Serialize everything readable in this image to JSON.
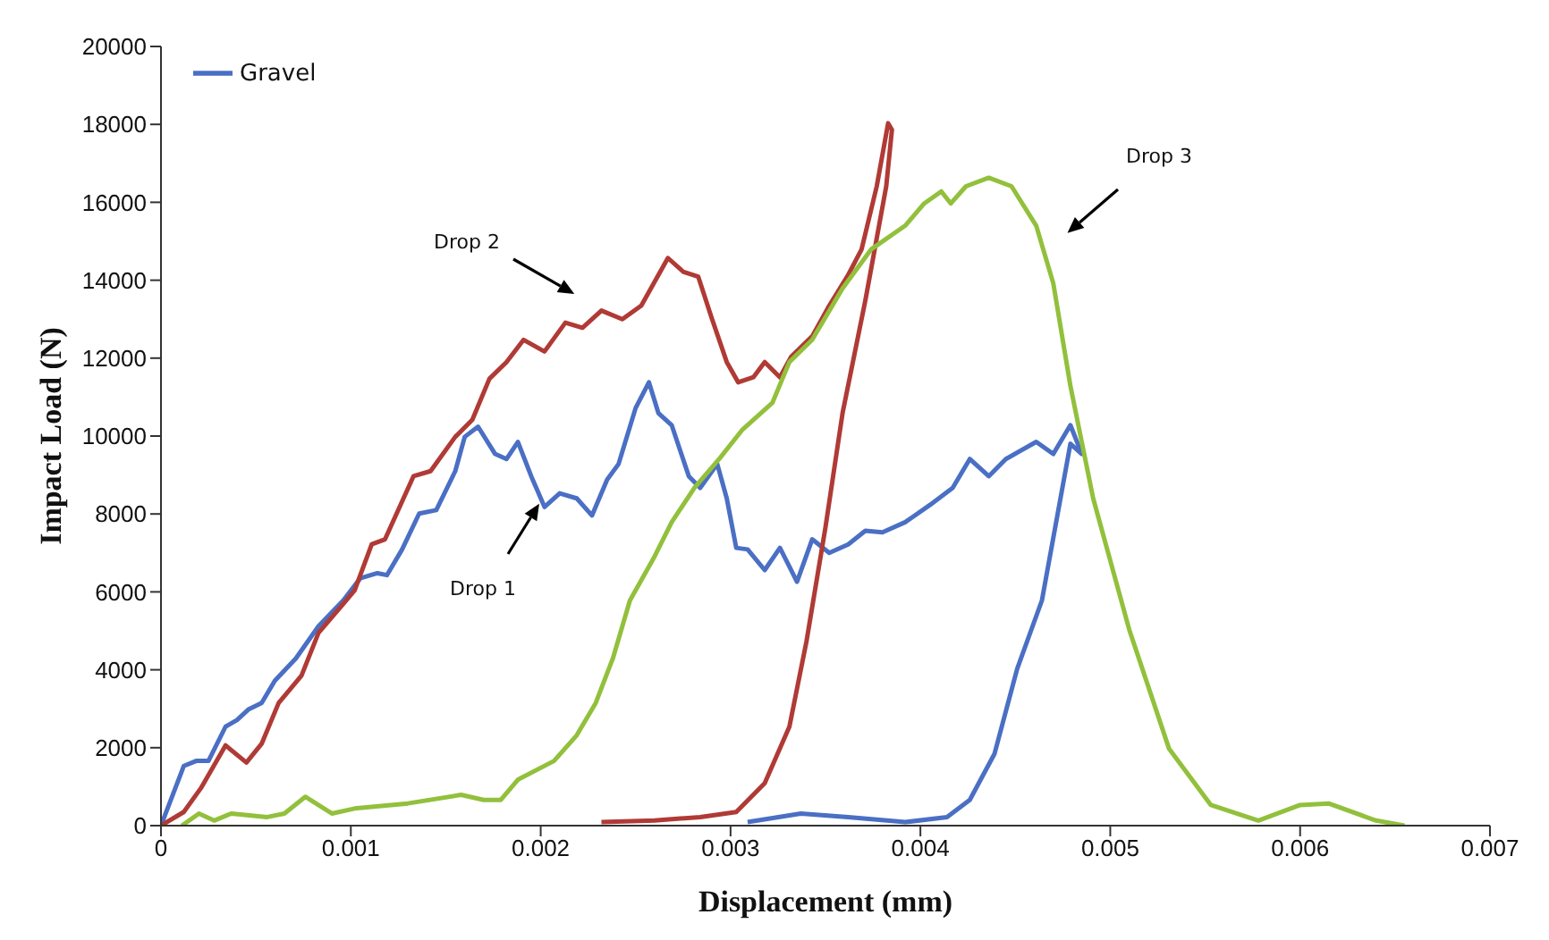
{
  "chart_data": {
    "type": "line",
    "xlabel": "Displacement (mm)",
    "ylabel": "Impact Load (N)",
    "xlim": [
      0,
      0.007
    ],
    "xticks": [
      0,
      0.001,
      0.002,
      0.003,
      0.004,
      0.005,
      0.006,
      0.007
    ],
    "ylim": [
      0,
      20000
    ],
    "yticks": [
      0,
      2000,
      4000,
      6000,
      8000,
      10000,
      12000,
      14000,
      16000,
      18000,
      20000
    ],
    "legend": "top left",
    "grid": false,
    "annotations": [
      "Drop 1",
      "Drop 2",
      "Drop 3"
    ],
    "series": [
      {
        "name": "Gravel",
        "color": "#4a6fc4",
        "x": [
          0,
          0.00012,
          0.000185,
          0.00025,
          0.00034,
          0.0004,
          0.00046,
          0.00053,
          0.0006,
          0.00071,
          0.00083,
          0.00096,
          0.00105,
          0.00114,
          0.00119,
          0.00127,
          0.00136,
          0.00145,
          0.00155,
          0.0016,
          0.00167,
          0.00176,
          0.00182,
          0.00188,
          0.00195,
          0.00202,
          0.0021,
          0.00219,
          0.00227,
          0.00235,
          0.00241,
          0.0025,
          0.00257,
          0.00262,
          0.00269,
          0.00278,
          0.00284,
          0.00293,
          0.00298,
          0.00303,
          0.00309,
          0.00318,
          0.00326,
          0.00331,
          0.00335,
          0.00343,
          0.00352,
          0.00362,
          0.00371,
          0.0038,
          0.00392,
          0.00405,
          0.00417,
          0.00426,
          0.00436,
          0.00445,
          0.00461,
          0.0047,
          0.00479,
          0.00485,
          0.00479,
          0.00464,
          0.00451,
          0.00439,
          0.00426,
          0.00414,
          0.00392,
          0.00362,
          0.00337,
          0.00309
        ],
        "values": [
          0,
          1530,
          1660,
          1660,
          2540,
          2710,
          2980,
          3150,
          3720,
          4290,
          5120,
          5780,
          6350,
          6480,
          6430,
          7090,
          8010,
          8100,
          9100,
          9980,
          10240,
          9540,
          9410,
          9850,
          8970,
          8180,
          8530,
          8400,
          7960,
          8880,
          9280,
          10720,
          11380,
          10590,
          10280,
          8970,
          8670,
          9280,
          8400,
          7130,
          7090,
          6560,
          7130,
          6650,
          6260,
          7350,
          7000,
          7220,
          7570,
          7530,
          7790,
          8230,
          8670,
          9410,
          8970,
          9410,
          9850,
          9540,
          10280,
          9540,
          9800,
          5780,
          4030,
          1840,
          660,
          220,
          90,
          220,
          310,
          90
        ]
      },
      {
        "color": "#b03a35",
        "x": [
          0,
          0.00012,
          0.00021,
          0.00034,
          0.00045,
          0.00053,
          0.00062,
          0.00074,
          0.00083,
          0.00096,
          0.00102,
          0.00111,
          0.00118,
          0.00133,
          0.00142,
          0.00155,
          0.00164,
          0.00173,
          0.00182,
          0.00191,
          0.00202,
          0.00213,
          0.00222,
          0.00232,
          0.00243,
          0.00253,
          0.00267,
          0.00275,
          0.00283,
          0.0029,
          0.00298,
          0.00304,
          0.00312,
          0.00318,
          0.00326,
          0.00332,
          0.00343,
          0.00352,
          0.00362,
          0.00369,
          0.00377,
          0.00383,
          0.00385,
          0.00382,
          0.00371,
          0.00359,
          0.0035,
          0.0034,
          0.00331,
          0.00318,
          0.00303,
          0.00284,
          0.0026,
          0.00232
        ],
        "values": [
          0,
          350,
          960,
          2060,
          1620,
          2100,
          3150,
          3850,
          4950,
          5690,
          6040,
          7220,
          7350,
          8970,
          9100,
          9980,
          10420,
          11470,
          11900,
          12470,
          12170,
          12910,
          12780,
          13220,
          13000,
          13350,
          14570,
          14220,
          14090,
          13040,
          11900,
          11380,
          11510,
          11900,
          11510,
          12040,
          12560,
          13350,
          14140,
          14790,
          16410,
          18030,
          17860,
          16410,
          13480,
          10590,
          7660,
          4730,
          2540,
          1090,
          350,
          220,
          130,
          90
        ]
      },
      {
        "color": "#92c03c",
        "x": [
          0.00011,
          0.0002,
          0.00028,
          0.00037,
          0.00056,
          0.00065,
          0.00076,
          0.0009,
          0.00102,
          0.0013,
          0.00158,
          0.0017,
          0.00179,
          0.00188,
          0.00207,
          0.00219,
          0.00229,
          0.00238,
          0.00247,
          0.0026,
          0.00269,
          0.00281,
          0.00294,
          0.00306,
          0.00322,
          0.00331,
          0.00343,
          0.00359,
          0.00374,
          0.00392,
          0.00402,
          0.00411,
          0.00416,
          0.00424,
          0.00436,
          0.00448,
          0.00461,
          0.0047,
          0.00479,
          0.00491,
          0.0051,
          0.00531,
          0.00553,
          0.00578,
          0.006,
          0.00615,
          0.0064,
          0.00655
        ],
        "values": [
          0,
          310,
          130,
          310,
          220,
          310,
          740,
          310,
          440,
          570,
          790,
          660,
          660,
          1180,
          1660,
          2320,
          3150,
          4290,
          5780,
          6910,
          7790,
          8670,
          9410,
          10150,
          10850,
          11900,
          12470,
          13790,
          14790,
          15400,
          15970,
          16280,
          15970,
          16410,
          16630,
          16410,
          15400,
          13920,
          11290,
          8400,
          5030,
          1970,
          530,
          130,
          530,
          570,
          130,
          0
        ]
      }
    ]
  }
}
